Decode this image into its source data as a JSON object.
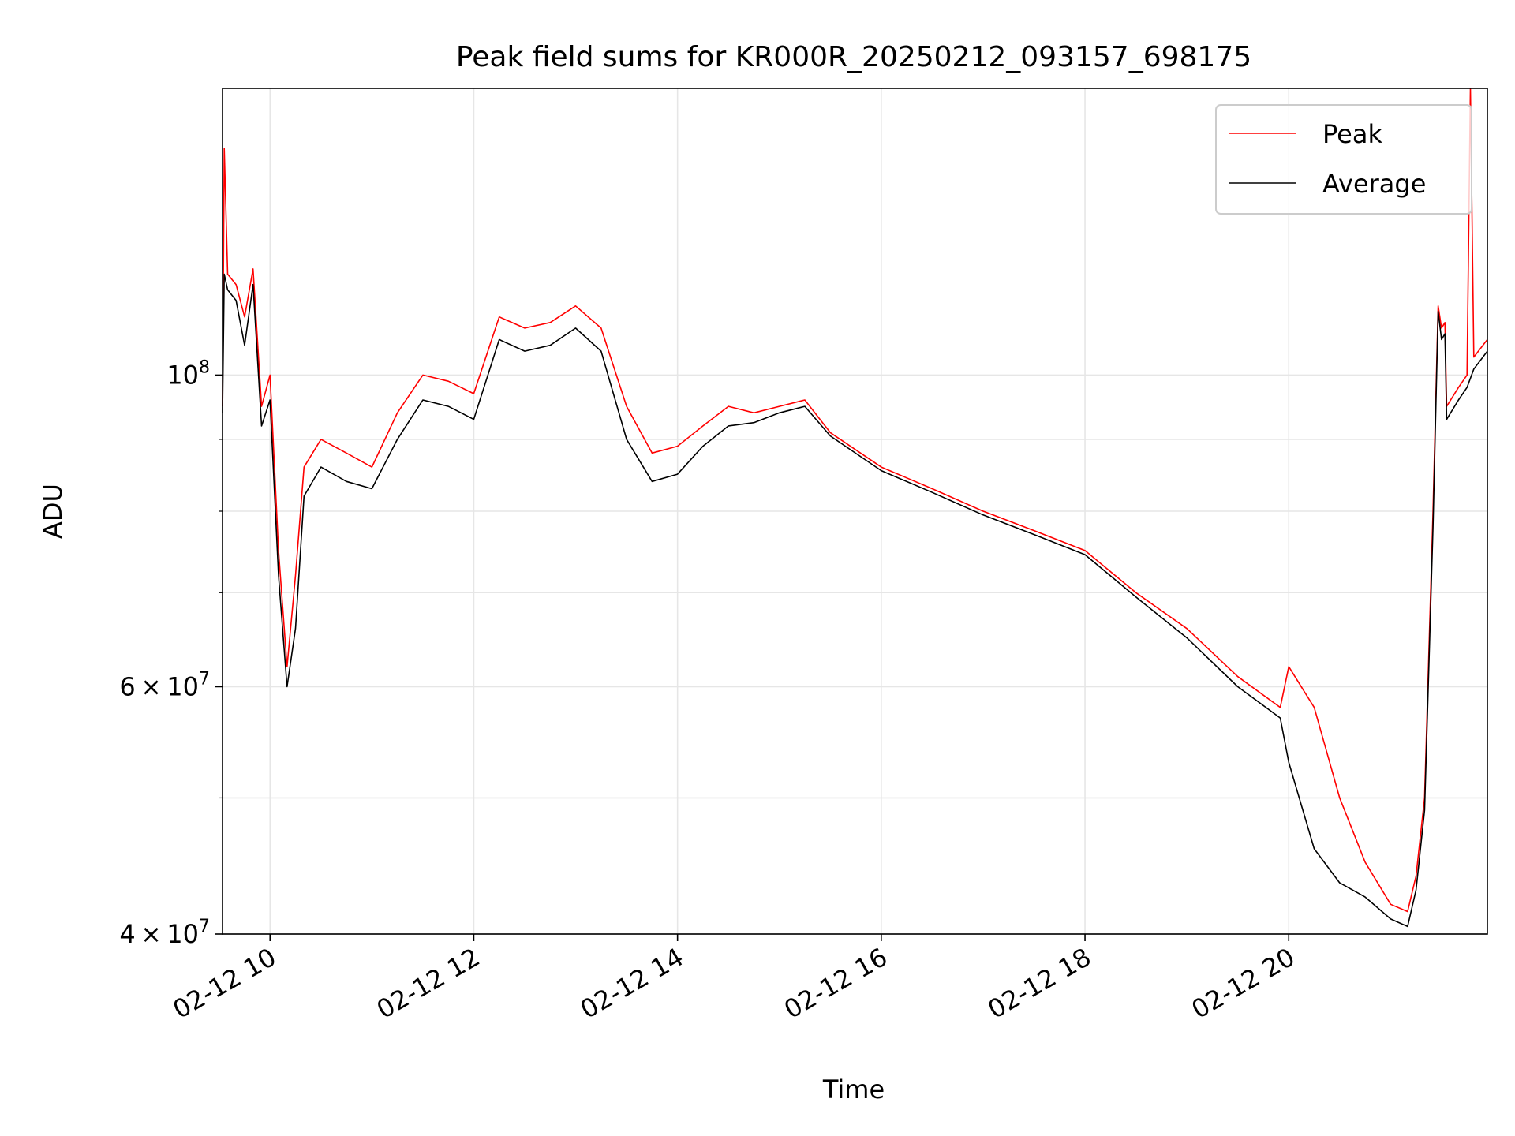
{
  "chart_data": {
    "type": "line",
    "title": "Peak field sums for KR000R_20250212_093157_698175",
    "xlabel": "Time",
    "ylabel": "ADU",
    "x_scale": "time",
    "y_scale": "log",
    "xlim": [
      "2025-02-12 09:32",
      "2025-02-12 21:57"
    ],
    "ylim": [
      40000000,
      160000000
    ],
    "x_ticks": [
      {
        "value": "2025-02-12 10:00",
        "label": "02-12 10"
      },
      {
        "value": "2025-02-12 12:00",
        "label": "02-12 12"
      },
      {
        "value": "2025-02-12 14:00",
        "label": "02-12 14"
      },
      {
        "value": "2025-02-12 16:00",
        "label": "02-12 16"
      },
      {
        "value": "2025-02-12 18:00",
        "label": "02-12 18"
      },
      {
        "value": "2025-02-12 20:00",
        "label": "02-12 20"
      }
    ],
    "y_major_ticks": [
      {
        "value": 40000000,
        "label_base": "4 × 10",
        "label_exp": "7"
      },
      {
        "value": 60000000,
        "label_base": "6 × 10",
        "label_exp": "7"
      },
      {
        "value": 100000000,
        "label_base": "10",
        "label_exp": "8"
      }
    ],
    "y_minor_ticks": [
      50000000,
      70000000,
      80000000,
      90000000
    ],
    "grid": true,
    "legend": {
      "placement": "top-right"
    },
    "series": [
      {
        "name": "Peak",
        "color": "#ff0000",
        "points": [
          [
            "2025-02-12 09:32",
            95000000
          ],
          [
            "2025-02-12 09:33",
            145000000
          ],
          [
            "2025-02-12 09:35",
            118000000
          ],
          [
            "2025-02-12 09:40",
            116000000
          ],
          [
            "2025-02-12 09:45",
            110000000
          ],
          [
            "2025-02-12 09:50",
            119000000
          ],
          [
            "2025-02-12 09:55",
            95000000
          ],
          [
            "2025-02-12 10:00",
            100000000
          ],
          [
            "2025-02-12 10:05",
            75000000
          ],
          [
            "2025-02-12 10:10",
            62000000
          ],
          [
            "2025-02-12 10:15",
            72000000
          ],
          [
            "2025-02-12 10:20",
            86000000
          ],
          [
            "2025-02-12 10:30",
            90000000
          ],
          [
            "2025-02-12 10:45",
            88000000
          ],
          [
            "2025-02-12 11:00",
            86000000
          ],
          [
            "2025-02-12 11:15",
            94000000
          ],
          [
            "2025-02-12 11:30",
            100000000
          ],
          [
            "2025-02-12 11:45",
            99000000
          ],
          [
            "2025-02-12 12:00",
            97000000
          ],
          [
            "2025-02-12 12:15",
            110000000
          ],
          [
            "2025-02-12 12:30",
            108000000
          ],
          [
            "2025-02-12 12:45",
            109000000
          ],
          [
            "2025-02-12 13:00",
            112000000
          ],
          [
            "2025-02-12 13:15",
            108000000
          ],
          [
            "2025-02-12 13:30",
            95000000
          ],
          [
            "2025-02-12 13:45",
            88000000
          ],
          [
            "2025-02-12 14:00",
            89000000
          ],
          [
            "2025-02-12 14:15",
            92000000
          ],
          [
            "2025-02-12 14:30",
            95000000
          ],
          [
            "2025-02-12 14:45",
            94000000
          ],
          [
            "2025-02-12 15:00",
            95000000
          ],
          [
            "2025-02-12 15:15",
            96000000
          ],
          [
            "2025-02-12 15:30",
            91000000
          ],
          [
            "2025-02-12 16:00",
            86000000
          ],
          [
            "2025-02-12 16:30",
            83000000
          ],
          [
            "2025-02-12 17:00",
            80000000
          ],
          [
            "2025-02-12 17:30",
            77500000
          ],
          [
            "2025-02-12 18:00",
            75000000
          ],
          [
            "2025-02-12 18:30",
            70000000
          ],
          [
            "2025-02-12 19:00",
            66000000
          ],
          [
            "2025-02-12 19:30",
            61000000
          ],
          [
            "2025-02-12 19:55",
            58000000
          ],
          [
            "2025-02-12 20:00",
            62000000
          ],
          [
            "2025-02-12 20:15",
            58000000
          ],
          [
            "2025-02-12 20:30",
            50000000
          ],
          [
            "2025-02-12 20:45",
            45000000
          ],
          [
            "2025-02-12 21:00",
            42000000
          ],
          [
            "2025-02-12 21:10",
            41500000
          ],
          [
            "2025-02-12 21:15",
            44000000
          ],
          [
            "2025-02-12 21:20",
            50000000
          ],
          [
            "2025-02-12 21:25",
            80000000
          ],
          [
            "2025-02-12 21:28",
            112000000
          ],
          [
            "2025-02-12 21:30",
            108000000
          ],
          [
            "2025-02-12 21:32",
            109000000
          ],
          [
            "2025-02-12 21:33",
            95000000
          ],
          [
            "2025-02-12 21:40",
            98000000
          ],
          [
            "2025-02-12 21:45",
            100000000
          ],
          [
            "2025-02-12 21:47",
            160000000
          ],
          [
            "2025-02-12 21:49",
            103000000
          ],
          [
            "2025-02-12 21:57",
            106000000
          ]
        ]
      },
      {
        "name": "Average",
        "color": "#000000",
        "points": [
          [
            "2025-02-12 09:32",
            94000000
          ],
          [
            "2025-02-12 09:33",
            118000000
          ],
          [
            "2025-02-12 09:35",
            115000000
          ],
          [
            "2025-02-12 09:40",
            113000000
          ],
          [
            "2025-02-12 09:45",
            105000000
          ],
          [
            "2025-02-12 09:50",
            116000000
          ],
          [
            "2025-02-12 09:55",
            92000000
          ],
          [
            "2025-02-12 10:00",
            96000000
          ],
          [
            "2025-02-12 10:05",
            72000000
          ],
          [
            "2025-02-12 10:10",
            60000000
          ],
          [
            "2025-02-12 10:15",
            66000000
          ],
          [
            "2025-02-12 10:20",
            82000000
          ],
          [
            "2025-02-12 10:30",
            86000000
          ],
          [
            "2025-02-12 10:45",
            84000000
          ],
          [
            "2025-02-12 11:00",
            83000000
          ],
          [
            "2025-02-12 11:15",
            90000000
          ],
          [
            "2025-02-12 11:30",
            96000000
          ],
          [
            "2025-02-12 11:45",
            95000000
          ],
          [
            "2025-02-12 12:00",
            93000000
          ],
          [
            "2025-02-12 12:15",
            106000000
          ],
          [
            "2025-02-12 12:30",
            104000000
          ],
          [
            "2025-02-12 12:45",
            105000000
          ],
          [
            "2025-02-12 13:00",
            108000000
          ],
          [
            "2025-02-12 13:15",
            104000000
          ],
          [
            "2025-02-12 13:30",
            90000000
          ],
          [
            "2025-02-12 13:45",
            84000000
          ],
          [
            "2025-02-12 14:00",
            85000000
          ],
          [
            "2025-02-12 14:15",
            89000000
          ],
          [
            "2025-02-12 14:30",
            92000000
          ],
          [
            "2025-02-12 14:45",
            92500000
          ],
          [
            "2025-02-12 15:00",
            94000000
          ],
          [
            "2025-02-12 15:15",
            95000000
          ],
          [
            "2025-02-12 15:30",
            90500000
          ],
          [
            "2025-02-12 16:00",
            85500000
          ],
          [
            "2025-02-12 16:30",
            82500000
          ],
          [
            "2025-02-12 17:00",
            79500000
          ],
          [
            "2025-02-12 17:30",
            77000000
          ],
          [
            "2025-02-12 18:00",
            74500000
          ],
          [
            "2025-02-12 18:30",
            69500000
          ],
          [
            "2025-02-12 19:00",
            65000000
          ],
          [
            "2025-02-12 19:30",
            60000000
          ],
          [
            "2025-02-12 19:55",
            57000000
          ],
          [
            "2025-02-12 20:00",
            53000000
          ],
          [
            "2025-02-12 20:15",
            46000000
          ],
          [
            "2025-02-12 20:30",
            43500000
          ],
          [
            "2025-02-12 20:45",
            42500000
          ],
          [
            "2025-02-12 21:00",
            41000000
          ],
          [
            "2025-02-12 21:10",
            40500000
          ],
          [
            "2025-02-12 21:15",
            43000000
          ],
          [
            "2025-02-12 21:20",
            49000000
          ],
          [
            "2025-02-12 21:25",
            78000000
          ],
          [
            "2025-02-12 21:28",
            111000000
          ],
          [
            "2025-02-12 21:30",
            106000000
          ],
          [
            "2025-02-12 21:32",
            107000000
          ],
          [
            "2025-02-12 21:33",
            93000000
          ],
          [
            "2025-02-12 21:40",
            96000000
          ],
          [
            "2025-02-12 21:45",
            98000000
          ],
          [
            "2025-02-12 21:49",
            101000000
          ],
          [
            "2025-02-12 21:57",
            104000000
          ]
        ]
      }
    ]
  }
}
